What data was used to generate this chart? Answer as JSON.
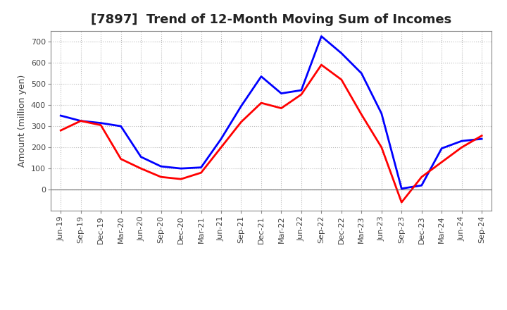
{
  "title": "[7897]  Trend of 12-Month Moving Sum of Incomes",
  "ylabel": "Amount (million yen)",
  "x_labels": [
    "Jun-19",
    "Sep-19",
    "Dec-19",
    "Mar-20",
    "Jun-20",
    "Sep-20",
    "Dec-20",
    "Mar-21",
    "Jun-21",
    "Sep-21",
    "Dec-21",
    "Mar-22",
    "Jun-22",
    "Sep-22",
    "Dec-22",
    "Mar-23",
    "Jun-23",
    "Sep-23",
    "Dec-23",
    "Mar-24",
    "Jun-24",
    "Sep-24"
  ],
  "ordinary_income": [
    350,
    325,
    315,
    300,
    155,
    110,
    100,
    105,
    240,
    395,
    535,
    455,
    470,
    725,
    645,
    550,
    360,
    5,
    20,
    195,
    230,
    240
  ],
  "net_income": [
    280,
    325,
    305,
    145,
    100,
    60,
    50,
    80,
    200,
    320,
    410,
    385,
    450,
    590,
    520,
    355,
    200,
    -60,
    60,
    130,
    200,
    255
  ],
  "ordinary_color": "#0000FF",
  "net_color": "#FF0000",
  "ylim_min": -100,
  "ylim_max": 750,
  "yticks": [
    0,
    100,
    200,
    300,
    400,
    500,
    600,
    700
  ],
  "background_color": "#FFFFFF",
  "plot_bg_color": "#FFFFFF",
  "grid_color": "#BBBBBB",
  "title_fontsize": 13,
  "axis_fontsize": 9,
  "tick_fontsize": 8,
  "legend_fontsize": 10,
  "line_width": 2.0
}
